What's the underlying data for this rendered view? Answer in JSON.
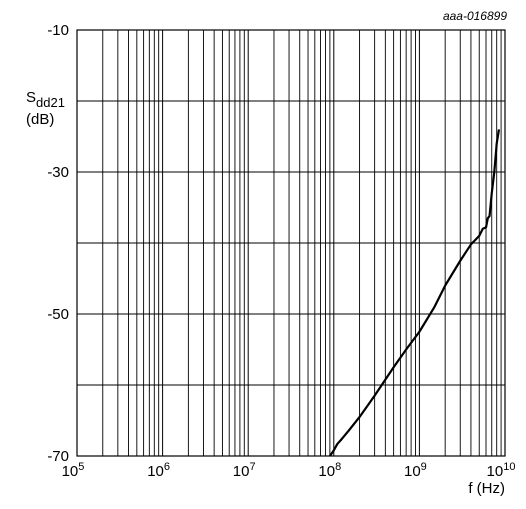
{
  "chart_data": {
    "type": "line",
    "reference": "aaa-016899",
    "ylabel_main": "S",
    "ylabel_sub": "dd21",
    "ylabel_unit": "(dB)",
    "xlabel": "f (Hz)",
    "xscale": "log",
    "xlim": [
      100000,
      10000000000
    ],
    "ylim": [
      -70,
      -10
    ],
    "grid": true,
    "x_ticks": [
      {
        "base": "10",
        "exp": "5",
        "value": 100000
      },
      {
        "base": "10",
        "exp": "6",
        "value": 1000000
      },
      {
        "base": "10",
        "exp": "7",
        "value": 10000000
      },
      {
        "base": "10",
        "exp": "8",
        "value": 100000000
      },
      {
        "base": "10",
        "exp": "9",
        "value": 1000000000
      },
      {
        "base": "10",
        "exp": "10",
        "value": 10000000000
      }
    ],
    "y_ticks": [
      {
        "label": "-10",
        "value": -10
      },
      {
        "label": "-30",
        "value": -30
      },
      {
        "label": "-50",
        "value": -50
      },
      {
        "label": "-70",
        "value": -70
      }
    ],
    "y_minor_grid": [
      -20,
      -40,
      -60
    ],
    "series": [
      {
        "color": "#000000",
        "points": [
          [
            90000000,
            -70
          ],
          [
            100000000,
            -69.2
          ],
          [
            110000000,
            -68.3
          ],
          [
            120000000,
            -67.8
          ],
          [
            130000000,
            -67.3
          ],
          [
            150000000,
            -66.4
          ],
          [
            200000000,
            -64.5
          ],
          [
            300000000,
            -61.5
          ],
          [
            500000000,
            -57.5
          ],
          [
            700000000,
            -55
          ],
          [
            1000000000,
            -52.5
          ],
          [
            1500000000,
            -49
          ],
          [
            2000000000,
            -46
          ],
          [
            3000000000,
            -42.5
          ],
          [
            4000000000,
            -40.2
          ],
          [
            5000000000,
            -39
          ],
          [
            5500000000,
            -38
          ],
          [
            6000000000,
            -37.8
          ],
          [
            6300000000,
            -36.5
          ],
          [
            6600000000,
            -36.2
          ],
          [
            7000000000,
            -33
          ],
          [
            7500000000,
            -30
          ],
          [
            8000000000,
            -26
          ],
          [
            8500000000,
            -24
          ]
        ]
      }
    ]
  }
}
